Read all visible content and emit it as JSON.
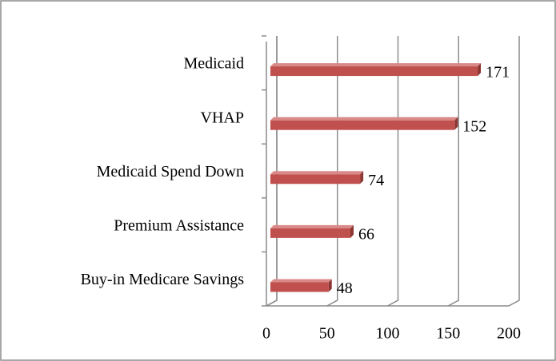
{
  "chart_data": {
    "type": "bar",
    "orientation": "horizontal",
    "categories": [
      "Medicaid",
      "VHAP",
      "Medicaid Spend Down",
      "Premium Assistance",
      "Buy-in Medicare Savings"
    ],
    "values": [
      171,
      152,
      74,
      66,
      48
    ],
    "color": "#c0504d",
    "xlim": [
      0,
      200
    ],
    "xticks": [
      0,
      50,
      100,
      150,
      200
    ],
    "grid": true
  }
}
